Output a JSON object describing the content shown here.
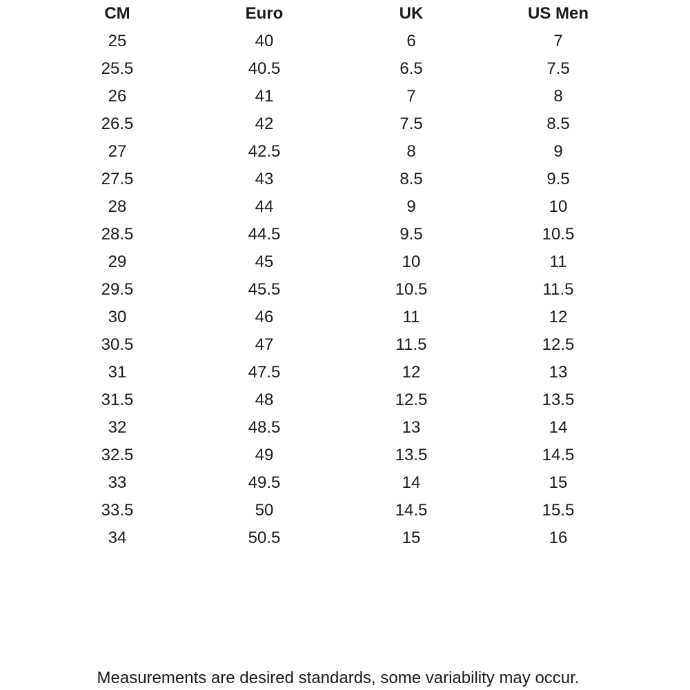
{
  "table": {
    "headers": [
      "CM",
      "Euro",
      "UK",
      "US Men"
    ],
    "rows": [
      [
        "25",
        "40",
        "6",
        "7"
      ],
      [
        "25.5",
        "40.5",
        "6.5",
        "7.5"
      ],
      [
        "26",
        "41",
        "7",
        "8"
      ],
      [
        "26.5",
        "42",
        "7.5",
        "8.5"
      ],
      [
        "27",
        "42.5",
        "8",
        "9"
      ],
      [
        "27.5",
        "43",
        "8.5",
        "9.5"
      ],
      [
        "28",
        "44",
        "9",
        "10"
      ],
      [
        "28.5",
        "44.5",
        "9.5",
        "10.5"
      ],
      [
        "29",
        "45",
        "10",
        "11"
      ],
      [
        "29.5",
        "45.5",
        "10.5",
        "11.5"
      ],
      [
        "30",
        "46",
        "11",
        "12"
      ],
      [
        "30.5",
        "47",
        "11.5",
        "12.5"
      ],
      [
        "31",
        "47.5",
        "12",
        "13"
      ],
      [
        "31.5",
        "48",
        "12.5",
        "13.5"
      ],
      [
        "32",
        "48.5",
        "13",
        "14"
      ],
      [
        "32.5",
        "49",
        "13.5",
        "14.5"
      ],
      [
        "33",
        "49.5",
        "14",
        "15"
      ],
      [
        "33.5",
        "50",
        "14.5",
        "15.5"
      ],
      [
        "34",
        "50.5",
        "15",
        "16"
      ]
    ]
  },
  "footnote": "Measurements are desired standards, some variability may occur."
}
